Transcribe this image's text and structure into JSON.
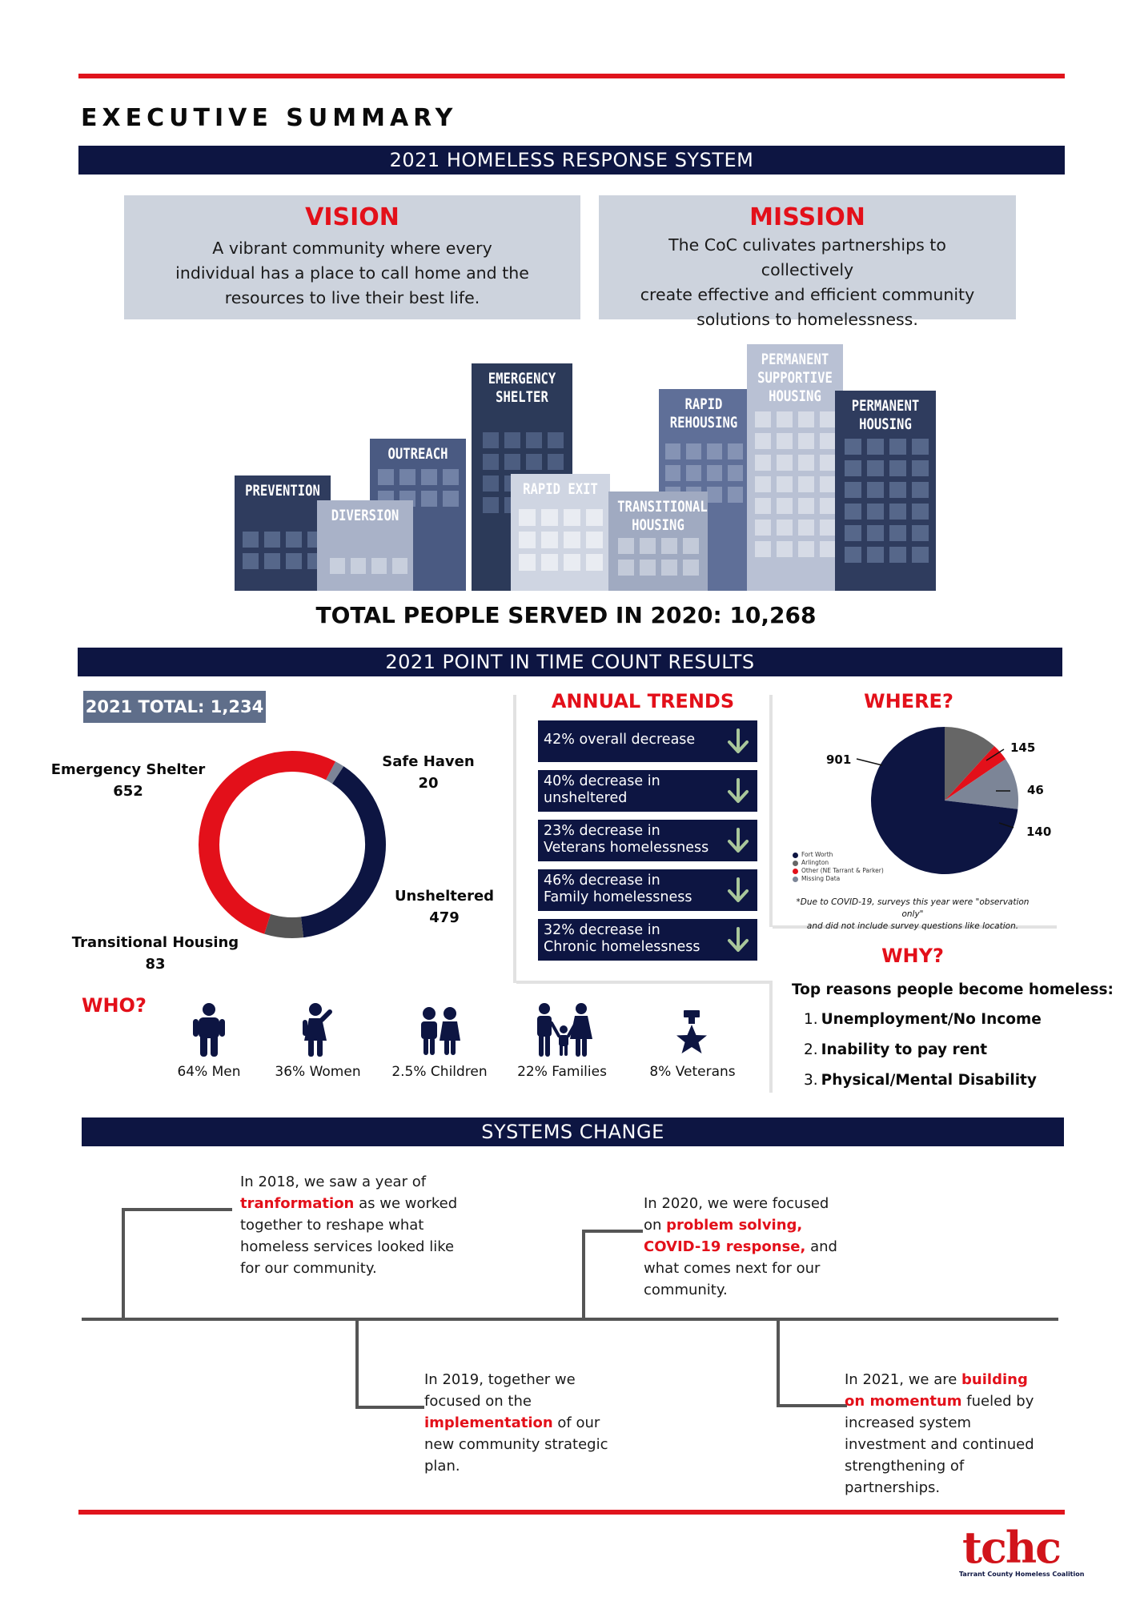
{
  "header": {
    "title": "EXECUTIVE SUMMARY"
  },
  "bars": {
    "response_system": "2021 HOMELESS RESPONSE SYSTEM",
    "pit": "2021 POINT IN TIME COUNT RESULTS",
    "systems": "SYSTEMS CHANGE"
  },
  "vision": {
    "title": "VISION",
    "lines": [
      "A vibrant community where every",
      "individual has a place to call home and the",
      "resources to live their best life."
    ]
  },
  "mission": {
    "title": "MISSION",
    "lines": [
      "The CoC culivates partnerships to collectively",
      "create effective and efficient community",
      "solutions to homelessness."
    ]
  },
  "buildings": {
    "prevention": [
      "PREVENTION"
    ],
    "diversion": [
      "DIVERSION"
    ],
    "outreach": [
      "OUTREACH"
    ],
    "emergency": [
      "EMERGENCY",
      "SHELTER"
    ],
    "rapid_exit": [
      "RAPID EXIT"
    ],
    "transitional": [
      "TRANSITIONAL",
      "HOUSING"
    ],
    "rapid_rehousing": [
      "RAPID",
      "REHOUSING"
    ],
    "psh": [
      "PERMANENT",
      "SUPPORTIVE",
      "HOUSING"
    ],
    "permanent": [
      "PERMANENT",
      "HOUSING"
    ]
  },
  "total_served": "TOTAL PEOPLE SERVED IN 2020: 10,268",
  "pit_total": "2021 TOTAL: 1,234",
  "chart_data": [
    {
      "type": "pie",
      "variant": "donut",
      "categories": [
        "Emergency Shelter",
        "Safe Haven",
        "Unsheltered",
        "Transitional Housing"
      ],
      "values": [
        652,
        20,
        479,
        83
      ],
      "colors": [
        "#e3101a",
        "#7c8597",
        "#0d1542",
        "#555555"
      ],
      "labels": {
        "emergency": {
          "name": "Emergency Shelter",
          "value": "652"
        },
        "safe_haven": {
          "name": "Safe Haven",
          "value": "20"
        },
        "unsheltered": {
          "name": "Unsheltered",
          "value": "479"
        },
        "transitional": {
          "name": "Transitional Housing",
          "value": "83"
        }
      }
    },
    {
      "type": "pie",
      "title": "WHERE?",
      "categories": [
        "Fort Worth",
        "Arlington",
        "Other (NE Tarrant & Parker)",
        "Missing Data"
      ],
      "values": [
        901,
        145,
        46,
        140
      ],
      "value_labels": [
        "901",
        "145",
        "46",
        "140"
      ],
      "colors": [
        "#0d1542",
        "#666666",
        "#e3101a",
        "#7c8597"
      ]
    }
  ],
  "trends": {
    "title": "ANNUAL TRENDS",
    "items": [
      {
        "lines": [
          "42% overall decrease"
        ]
      },
      {
        "lines": [
          "40% decrease in",
          "unsheltered"
        ]
      },
      {
        "lines": [
          "23% decrease in",
          "Veterans homelessness"
        ]
      },
      {
        "lines": [
          "46% decrease in",
          "Family homelessness"
        ]
      },
      {
        "lines": [
          "32% decrease in",
          "Chronic homelessness"
        ]
      }
    ]
  },
  "where": {
    "note_lines": [
      "*Due to COVID-19, surveys this year were \"observation only\"",
      "and did not include survey questions like location."
    ]
  },
  "why": {
    "title": "WHY?",
    "subtitle": "Top reasons people become homeless:",
    "items": [
      {
        "num": "1.",
        "text": "Unemployment/No Income"
      },
      {
        "num": "2.",
        "text": "Inability to pay rent"
      },
      {
        "num": "3.",
        "text": "Physical/Mental Disability"
      }
    ]
  },
  "who": {
    "title": "WHO?",
    "items": [
      {
        "label": "64% Men",
        "icon": "man-icon"
      },
      {
        "label": "36% Women",
        "icon": "woman-icon"
      },
      {
        "label": "2.5% Children",
        "icon": "children-icon"
      },
      {
        "label": "22% Families",
        "icon": "family-icon"
      },
      {
        "label": "8% Veterans",
        "icon": "veteran-medal-icon"
      }
    ]
  },
  "timeline": {
    "y2018": [
      [
        "In 2018, we saw a year of"
      ],
      [
        "tranformation",
        " as we worked"
      ],
      [
        "together to reshape what"
      ],
      [
        "homeless services looked like"
      ],
      [
        "for our community."
      ]
    ],
    "y2019": [
      [
        "In 2019, together we"
      ],
      [
        "focused on the"
      ],
      [
        "implementation",
        " of our"
      ],
      [
        "new community strategic"
      ],
      [
        "plan."
      ]
    ],
    "y2020": [
      [
        "In 2020, we were focused"
      ],
      [
        "on ",
        "problem solving,"
      ],
      [
        "COVID-19 response,",
        " and"
      ],
      [
        "what comes next for our"
      ],
      [
        "community."
      ]
    ],
    "y2021": [
      [
        "In 2021, we are ",
        "building"
      ],
      [
        "on momentum",
        " fueled by"
      ],
      [
        "increased system"
      ],
      [
        "investment and continued"
      ],
      [
        "strengthening of"
      ],
      [
        "partnerships."
      ]
    ]
  },
  "logo": {
    "mark": "tchc",
    "name": "Tarrant County Homeless Coalition"
  }
}
